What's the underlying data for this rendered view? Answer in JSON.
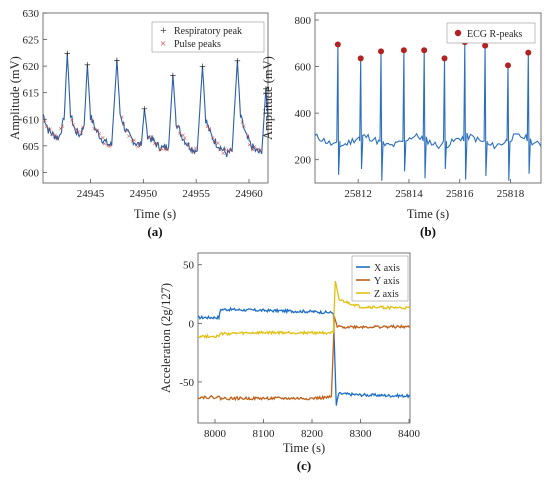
{
  "chart_data": [
    {
      "panel": "(a)",
      "type": "line",
      "xlabel": "Time (s)",
      "ylabel": "Amplitude (mV)",
      "xlim": [
        24940.5,
        24961.8
      ],
      "ylim": [
        598,
        630
      ],
      "xticks": [
        24945,
        24950,
        24955,
        24960
      ],
      "yticks": [
        600,
        605,
        610,
        615,
        620,
        625,
        630
      ],
      "grid": false,
      "legend_position": "top-right",
      "colors": {
        "signal": "#2c5fa8",
        "resp_marker": "#111111",
        "pulse_marker": "#c0392b"
      },
      "legend": [
        "Respiratory peak",
        "Pulse peaks"
      ],
      "respiratory_peaks": {
        "name": "Respiratory peak",
        "marker": "+",
        "x": [
          24942.8,
          24944.7,
          24947.5,
          24950.1,
          24952.8,
          24955.6,
          24958.9,
          24961.6
        ],
        "y": [
          622.5,
          620.3,
          621.2,
          612.0,
          618.3,
          620.0,
          621.1,
          615.8
        ]
      },
      "signal": {
        "x": [
          24940.5,
          24941.0,
          24941.5,
          24942.0,
          24942.5,
          24942.8,
          24943.1,
          24943.5,
          24944.0,
          24944.4,
          24944.7,
          24945.0,
          24945.5,
          24946.0,
          24946.5,
          24947.0,
          24947.5,
          24947.8,
          24948.3,
          24948.8,
          24949.3,
          24949.8,
          24950.1,
          24950.4,
          24950.9,
          24951.4,
          24951.9,
          24952.4,
          24952.8,
          24953.1,
          24953.6,
          24954.1,
          24954.6,
          24955.1,
          24955.6,
          24955.9,
          24956.4,
          24956.9,
          24957.4,
          24957.9,
          24958.4,
          24958.9,
          24959.2,
          24959.7,
          24960.2,
          24960.7,
          24961.2,
          24961.6,
          24961.8
        ],
        "y": [
          611.0,
          608.0,
          607.0,
          606.5,
          610.0,
          622.5,
          611.0,
          608.0,
          607.0,
          609.0,
          620.3,
          610.5,
          608.0,
          606.5,
          605.5,
          605.0,
          621.2,
          611.0,
          608.0,
          606.5,
          605.5,
          605.0,
          612.0,
          607.0,
          606.0,
          605.0,
          604.5,
          605.0,
          618.3,
          609.5,
          607.0,
          605.5,
          604.5,
          604.0,
          620.0,
          610.0,
          607.0,
          605.5,
          604.5,
          603.5,
          604.0,
          621.1,
          610.5,
          607.0,
          605.0,
          604.0,
          603.5,
          615.8,
          610.0
        ]
      }
    },
    {
      "panel": "(b)",
      "type": "line",
      "xlabel": "Time (s)",
      "ylabel": "Amplitude (mV)",
      "xlim": [
        25810.3,
        25819.2
      ],
      "ylim": [
        100,
        830
      ],
      "xticks": [
        25812,
        25814,
        25816,
        25818
      ],
      "yticks": [
        200,
        400,
        600,
        800
      ],
      "grid": false,
      "legend_position": "top-right",
      "colors": {
        "signal": "#2c6fbf",
        "marker": "#b22222"
      },
      "legend": [
        "ECG R-peaks"
      ],
      "r_peaks": {
        "name": "ECG R-peaks",
        "x": [
          25811.2,
          25812.1,
          25812.9,
          25813.8,
          25814.6,
          25815.4,
          25816.2,
          25817.0,
          25817.9,
          25818.7
        ],
        "y": [
          695,
          635,
          665,
          670,
          670,
          635,
          705,
          690,
          605,
          660
        ]
      },
      "baseline": 280,
      "trough_values": [
        135,
        160,
        110,
        150,
        120,
        160,
        115,
        130,
        110,
        140
      ]
    },
    {
      "panel": "(c)",
      "type": "line",
      "xlabel": "Time (s)",
      "ylabel": "Acceleration (2g/127)",
      "xlim": [
        7965,
        8402
      ],
      "ylim": [
        -85,
        60
      ],
      "xticks": [
        8000,
        8100,
        8200,
        8300,
        8400
      ],
      "yticks": [
        -50,
        0,
        50
      ],
      "grid": false,
      "legend_position": "top-right",
      "series": [
        {
          "name": "X axis",
          "color": "#1f6fc4",
          "x": [
            7965,
            8008,
            8012,
            8100,
            8200,
            8244,
            8250,
            8255,
            8300,
            8402
          ],
          "y": [
            5,
            5,
            12,
            11,
            10,
            9,
            -70,
            -60,
            -61,
            -62
          ]
        },
        {
          "name": "Y axis",
          "color": "#c0611b",
          "x": [
            7965,
            8008,
            8012,
            8100,
            8200,
            8240,
            8246,
            8252,
            8300,
            8402
          ],
          "y": [
            -63,
            -63,
            -64,
            -64,
            -64,
            -63,
            5,
            -3,
            -3,
            -3
          ]
        },
        {
          "name": "Z axis",
          "color": "#e2c013",
          "x": [
            7965,
            8008,
            8012,
            8100,
            8200,
            8244,
            8248,
            8256,
            8300,
            8402
          ],
          "y": [
            -11,
            -11,
            -9,
            -8,
            -8,
            -8,
            35,
            20,
            14,
            13
          ]
        }
      ]
    }
  ]
}
